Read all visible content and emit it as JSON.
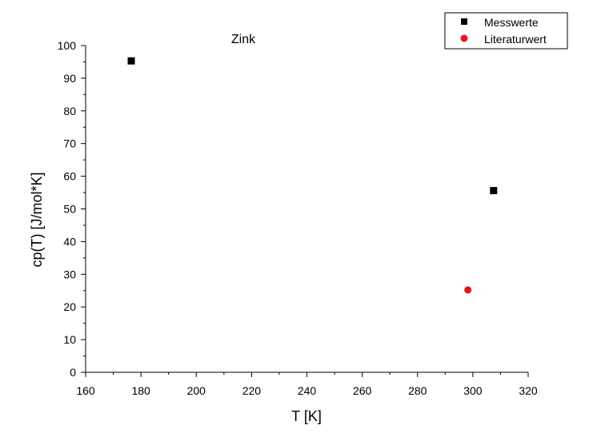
{
  "chart_data": {
    "type": "scatter",
    "title": "Zink",
    "xlabel": "T [K]",
    "ylabel": "cp(T) [J/mol*K]",
    "xlim": [
      160,
      320
    ],
    "ylim": [
      0,
      100
    ],
    "x_ticks": [
      160,
      180,
      200,
      220,
      240,
      260,
      280,
      300,
      320
    ],
    "y_ticks": [
      0,
      10,
      20,
      30,
      40,
      50,
      60,
      70,
      80,
      90,
      100
    ],
    "grid": false,
    "legend_position": "top-right",
    "series": [
      {
        "name": "Messwerte",
        "marker": "square",
        "color": "#000000",
        "points": [
          {
            "x": 176.5,
            "y": 95.3
          },
          {
            "x": 307.5,
            "y": 55.6
          }
        ]
      },
      {
        "name": "Literaturwert",
        "marker": "circle",
        "color": "#e8131b",
        "points": [
          {
            "x": 298.2,
            "y": 25.2
          }
        ]
      }
    ]
  }
}
